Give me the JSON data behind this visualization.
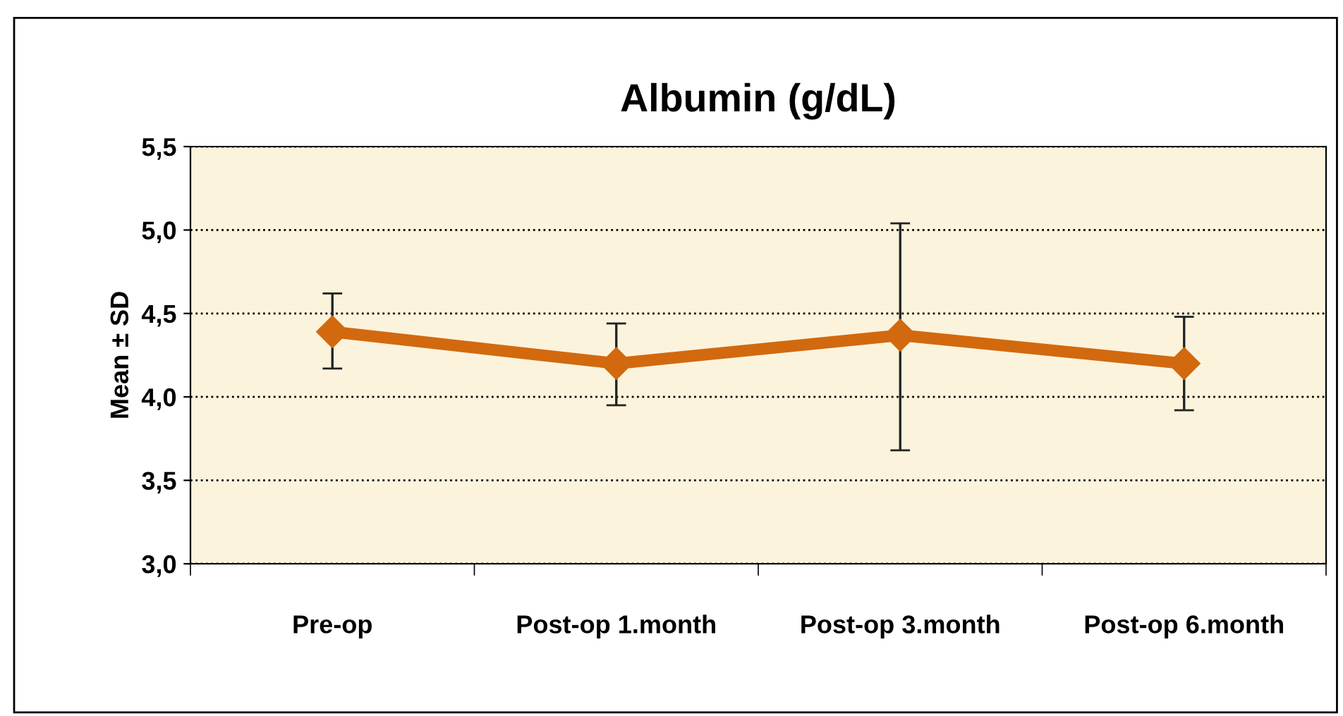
{
  "chart_data": {
    "type": "line",
    "title": "Albumin (g/dL)",
    "ylabel": "Mean ± SD",
    "categories": [
      "Pre-op",
      "Post-op 1.month",
      "Post-op 3.month",
      "Post-op 6.month"
    ],
    "series": [
      {
        "color": "#d2690e",
        "values": [
          4.39,
          4.2,
          4.37,
          4.2
        ],
        "errors": [
          [
            4.17,
            4.62
          ],
          [
            3.95,
            4.44
          ],
          [
            3.68,
            5.04
          ],
          [
            3.92,
            4.48
          ]
        ]
      }
    ],
    "ylim": [
      3.0,
      5.5
    ],
    "yticks": [
      {
        "value": 3.0,
        "label": "3,0"
      },
      {
        "value": 3.5,
        "label": "3,5"
      },
      {
        "value": 4.0,
        "label": "4,0"
      },
      {
        "value": 4.5,
        "label": "4,5"
      },
      {
        "value": 5.0,
        "label": "5,0"
      },
      {
        "value": 5.5,
        "label": "5,5"
      }
    ],
    "grid": "y",
    "marker": "diamond",
    "line_style": "solid"
  }
}
